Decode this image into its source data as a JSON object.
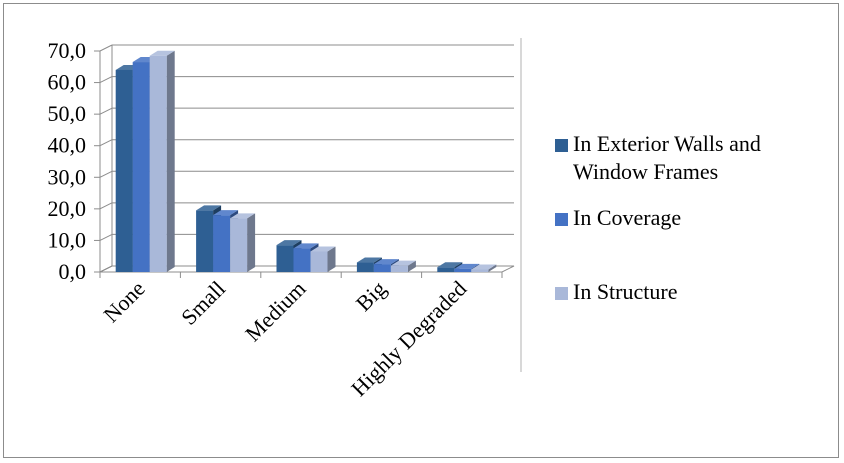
{
  "chart_data": {
    "type": "bar",
    "title": "",
    "xlabel": "",
    "ylabel": "",
    "categories": [
      "None",
      "Small",
      "Medium",
      "Big",
      "Highly Degraded"
    ],
    "series": [
      {
        "name": "In Exterior Walls and Window Frames",
        "color": "#2e5f93",
        "values": [
          64.0,
          19.5,
          8.5,
          3.0,
          1.5
        ]
      },
      {
        "name": "In Coverage",
        "color": "#4472c4",
        "values": [
          66.5,
          18.0,
          7.5,
          2.5,
          1.0
        ]
      },
      {
        "name": "In Structure",
        "color": "#a9b8d9",
        "values": [
          68.5,
          17.0,
          6.5,
          2.0,
          0.8
        ]
      }
    ],
    "yticks": [
      "0,0",
      "10,0",
      "20,0",
      "30,0",
      "40,0",
      "50,0",
      "60,0",
      "70,0"
    ],
    "ylim": [
      0,
      70
    ],
    "grid": true,
    "legend_position": "right",
    "legend": [
      {
        "lines": [
          "In Exterior Walls and",
          "Window Frames"
        ]
      },
      {
        "lines": [
          "In Coverage"
        ]
      },
      {
        "lines": [
          "In Structure"
        ]
      }
    ]
  }
}
